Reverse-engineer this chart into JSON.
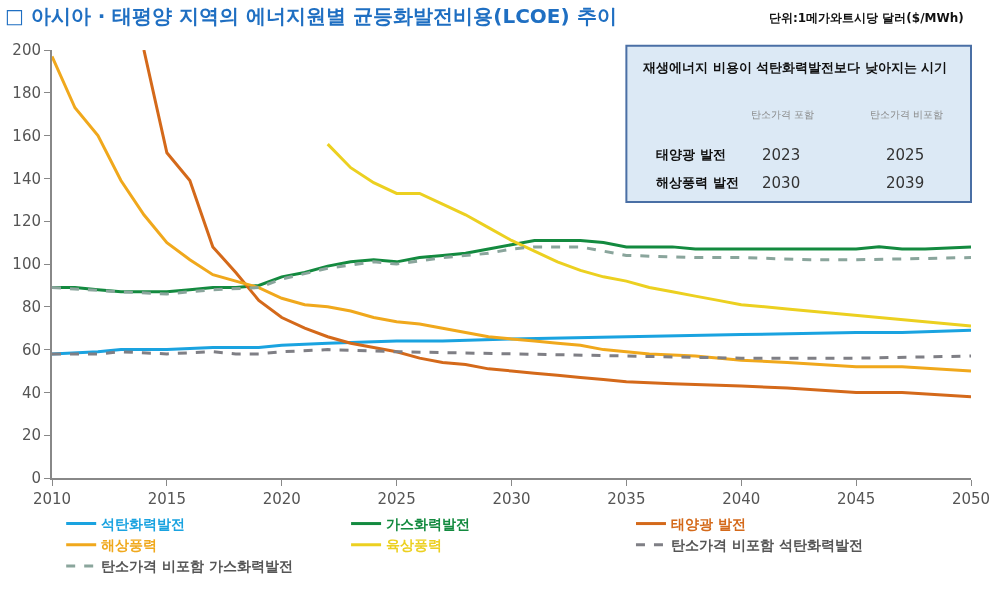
{
  "chart_data": {
    "type": "line",
    "title": "□ 아시아 · 태평양 지역의 에너지원별 균등화발전비용(LCOE) 추이",
    "xlim": [
      2010,
      2050
    ],
    "xticks": [
      2010,
      2015,
      2020,
      2025,
      2030,
      2035,
      2040,
      2045,
      2050
    ],
    "ylim": [
      0,
      200
    ],
    "yticks": [
      0,
      20,
      40,
      60,
      80,
      100,
      120,
      140,
      160,
      180,
      200
    ],
    "grid": false,
    "legend": "bottom",
    "marker": "none",
    "series": [
      {
        "name": "석탄화력발전",
        "color": "#1aa3e0",
        "line_style": "solid",
        "x": [
          2010,
          2012,
          2013,
          2015,
          2017,
          2019,
          2020,
          2022,
          2025,
          2027,
          2030,
          2035,
          2040,
          2045,
          2047,
          2050
        ],
        "values": [
          58,
          59,
          60,
          60,
          61,
          61,
          62,
          63,
          64,
          64,
          65,
          66,
          67,
          68,
          68,
          69
        ]
      },
      {
        "name": "가스화력발전",
        "color": "#138a3f",
        "line_style": "solid",
        "x": [
          2010,
          2011,
          2012,
          2013,
          2014,
          2015,
          2016,
          2017,
          2018,
          2019,
          2020,
          2021,
          2022,
          2023,
          2024,
          2025,
          2026,
          2027,
          2028,
          2029,
          2030,
          2031,
          2032,
          2033,
          2034,
          2035,
          2036,
          2037,
          2038,
          2040,
          2045,
          2046,
          2047,
          2048,
          2050
        ],
        "values": [
          89,
          89,
          88,
          87,
          87,
          87,
          88,
          89,
          89,
          90,
          94,
          96,
          99,
          101,
          102,
          101,
          103,
          104,
          105,
          107,
          109,
          111,
          111,
          111,
          110,
          108,
          108,
          108,
          107,
          107,
          107,
          108,
          107,
          107,
          108
        ]
      },
      {
        "name": "태양광 발전",
        "color": "#d4691a",
        "line_style": "solid",
        "x": [
          2014,
          2015,
          2016,
          2017,
          2018,
          2019,
          2020,
          2021,
          2022,
          2023,
          2024,
          2025,
          2026,
          2027,
          2028,
          2029,
          2030,
          2031,
          2032,
          2033,
          2034,
          2035,
          2037,
          2040,
          2042,
          2045,
          2047,
          2050
        ],
        "values": [
          200,
          152,
          139,
          108,
          96,
          83,
          75,
          70,
          66,
          63,
          61,
          59,
          56,
          54,
          53,
          51,
          50,
          49,
          48,
          47,
          46,
          45,
          44,
          43,
          42,
          40,
          40,
          38
        ]
      },
      {
        "name": "해상풍력",
        "color": "#f0a81c",
        "line_style": "solid",
        "x": [
          2010,
          2011,
          2012,
          2013,
          2014,
          2015,
          2016,
          2017,
          2018,
          2019,
          2020,
          2021,
          2022,
          2023,
          2024,
          2025,
          2026,
          2027,
          2028,
          2029,
          2030,
          2031,
          2032,
          2033,
          2034,
          2035,
          2036,
          2038,
          2040,
          2042,
          2045,
          2047,
          2050
        ],
        "values": [
          197,
          173,
          160,
          139,
          123,
          110,
          102,
          95,
          92,
          89,
          84,
          81,
          80,
          78,
          75,
          73,
          72,
          70,
          68,
          66,
          65,
          64,
          63,
          62,
          60,
          59,
          58,
          57,
          55,
          54,
          52,
          52,
          50
        ]
      },
      {
        "name": "육상풍력",
        "color": "#ecd020",
        "line_style": "solid",
        "x": [
          2022,
          2023,
          2024,
          2025,
          2026,
          2027,
          2028,
          2029,
          2030,
          2031,
          2032,
          2033,
          2034,
          2035,
          2036,
          2037,
          2038,
          2039,
          2040,
          2042,
          2044,
          2046,
          2048,
          2050
        ],
        "values": [
          156,
          145,
          138,
          133,
          133,
          128,
          123,
          117,
          111,
          106,
          101,
          97,
          94,
          92,
          89,
          87,
          85,
          83,
          81,
          79,
          77,
          75,
          73,
          71
        ]
      },
      {
        "name": "탄소가격 비포함 석탄화력발전",
        "color": "#7f7f85",
        "line_style": "dashed",
        "x": [
          2010,
          2012,
          2013,
          2015,
          2017,
          2018,
          2019,
          2020,
          2022,
          2025,
          2030,
          2035,
          2040,
          2045,
          2050
        ],
        "values": [
          58,
          58,
          59,
          58,
          59,
          58,
          58,
          59,
          60,
          59,
          58,
          57,
          56,
          56,
          57
        ]
      },
      {
        "name": "탄소가격 비포함 가스화력발전",
        "color": "#8aa59c",
        "line_style": "dashed",
        "x": [
          2010,
          2013,
          2015,
          2017,
          2019,
          2020,
          2022,
          2024,
          2025,
          2027,
          2029,
          2030,
          2031,
          2033,
          2035,
          2038,
          2040,
          2043,
          2045,
          2050
        ],
        "values": [
          89,
          87,
          86,
          88,
          89,
          93,
          98,
          101,
          100,
          103,
          105,
          107,
          108,
          108,
          104,
          103,
          103,
          102,
          102,
          103
        ]
      }
    ],
    "annotations": [
      "단위:1메가와트시당 달러($/MWh)",
      "재생에너지 비용이 석탄화력발전보다 낮아지는 시기",
      "탄소가격 포함",
      "탄소가격 비포함",
      "태양광 발전",
      "2023",
      "2025",
      "해상풍력 발전",
      "2030",
      "2039"
    ]
  }
}
